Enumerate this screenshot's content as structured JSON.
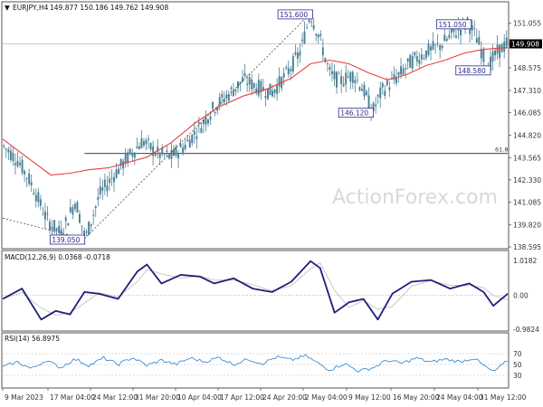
{
  "header": {
    "symbol": "EURJPY,H4",
    "ohlc": "149.877 150.186 149.762 149.908"
  },
  "watermark": "ActionForex.com",
  "colors": {
    "candle": "#4a7f95",
    "ma": "#e8413d",
    "price_tag_bg": "#000000",
    "annotation": "#2b2b8c",
    "macd_main": "#1f1f7a",
    "macd_signal": "#c9c9c9",
    "rsi_line": "#3a8fd6",
    "grid": "#d9d9d9"
  },
  "price_axis": {
    "ticks": [
      "151.055",
      "149.908",
      "148.575",
      "147.310",
      "146.085",
      "144.820",
      "143.565",
      "142.330",
      "141.085",
      "139.820",
      "138.595"
    ],
    "current_price": "149.908"
  },
  "annotations": {
    "high1": "151.600",
    "low1": "139.050",
    "low2": "146.120",
    "high2": "151.050",
    "low3": "148.580",
    "fib": "61.8"
  },
  "macd": {
    "label": "MACD(12,26,9) 0.0368 -0.0718",
    "ticks": [
      "1.0182",
      "0.00",
      "-0.9824"
    ]
  },
  "rsi": {
    "label": "RSI(14) 56.8975",
    "ticks": [
      "70",
      "50",
      "30"
    ]
  },
  "time_axis": {
    "labels": [
      "9 Mar 2023",
      "17 Mar 04:00",
      "24 Mar 12:00",
      "31 Mar 20:00",
      "10 Apr 04:00",
      "17 Apr 12:00",
      "24 Apr 20:00",
      "2 May 04:00",
      "9 May 12:00",
      "16 May 20:00",
      "24 May 04:00",
      "31 May 12:00"
    ]
  },
  "chart_data": {
    "type": "candlestick",
    "price_range": [
      138.595,
      152.2
    ],
    "close_path": [
      [
        0,
        144.2
      ],
      [
        6,
        143.4
      ],
      [
        12,
        142.0
      ],
      [
        18,
        140.1
      ],
      [
        24,
        139.3
      ],
      [
        30,
        141.2
      ],
      [
        34,
        139.05
      ],
      [
        40,
        141.5
      ],
      [
        46,
        142.6
      ],
      [
        52,
        143.6
      ],
      [
        58,
        144.5
      ],
      [
        64,
        143.8
      ],
      [
        70,
        143.6
      ],
      [
        76,
        144.3
      ],
      [
        82,
        145.3
      ],
      [
        88,
        146.4
      ],
      [
        94,
        147.1
      ],
      [
        100,
        147.9
      ],
      [
        106,
        147.5
      ],
      [
        112,
        147.2
      ],
      [
        118,
        148.2
      ],
      [
        124,
        149.5
      ],
      [
        128,
        151.6
      ],
      [
        132,
        150.2
      ],
      [
        136,
        148.3
      ],
      [
        140,
        147.8
      ],
      [
        146,
        148.2
      ],
      [
        150,
        147.4
      ],
      [
        154,
        146.12
      ],
      [
        158,
        147.3
      ],
      [
        164,
        148.0
      ],
      [
        170,
        148.9
      ],
      [
        176,
        149.4
      ],
      [
        182,
        149.8
      ],
      [
        188,
        150.5
      ],
      [
        194,
        151.05
      ],
      [
        198,
        150.1
      ],
      [
        202,
        148.58
      ],
      [
        206,
        149.4
      ],
      [
        210,
        149.908
      ]
    ],
    "ma_path": [
      [
        0,
        144.6
      ],
      [
        10,
        143.6
      ],
      [
        20,
        142.6
      ],
      [
        28,
        142.7
      ],
      [
        36,
        142.9
      ],
      [
        44,
        143.0
      ],
      [
        52,
        143.3
      ],
      [
        60,
        143.6
      ],
      [
        70,
        144.4
      ],
      [
        80,
        145.5
      ],
      [
        90,
        146.4
      ],
      [
        100,
        147.0
      ],
      [
        110,
        147.4
      ],
      [
        120,
        148.0
      ],
      [
        128,
        148.8
      ],
      [
        136,
        149.0
      ],
      [
        144,
        148.8
      ],
      [
        152,
        148.3
      ],
      [
        160,
        147.9
      ],
      [
        168,
        148.2
      ],
      [
        176,
        148.7
      ],
      [
        184,
        149.0
      ],
      [
        192,
        149.4
      ],
      [
        200,
        149.6
      ],
      [
        210,
        149.7
      ]
    ],
    "fib_level": 143.8,
    "macd_path": [
      [
        0,
        -0.1
      ],
      [
        8,
        0.2
      ],
      [
        16,
        -0.7
      ],
      [
        22,
        -0.45
      ],
      [
        28,
        -0.55
      ],
      [
        34,
        0.1
      ],
      [
        40,
        0.05
      ],
      [
        48,
        -0.1
      ],
      [
        56,
        0.7
      ],
      [
        60,
        0.9
      ],
      [
        66,
        0.35
      ],
      [
        74,
        0.6
      ],
      [
        82,
        0.55
      ],
      [
        88,
        0.35
      ],
      [
        96,
        0.5
      ],
      [
        104,
        0.2
      ],
      [
        112,
        0.1
      ],
      [
        120,
        0.4
      ],
      [
        128,
        1.0
      ],
      [
        132,
        0.8
      ],
      [
        138,
        -0.5
      ],
      [
        144,
        -0.2
      ],
      [
        150,
        -0.1
      ],
      [
        156,
        -0.7
      ],
      [
        162,
        0.05
      ],
      [
        170,
        0.4
      ],
      [
        178,
        0.45
      ],
      [
        186,
        0.2
      ],
      [
        194,
        0.35
      ],
      [
        200,
        0.1
      ],
      [
        204,
        -0.3
      ],
      [
        210,
        0.05
      ]
    ],
    "macd_range": [
      -0.9824,
      1.0182
    ],
    "rsi_path": [
      [
        0,
        45
      ],
      [
        6,
        55
      ],
      [
        12,
        42
      ],
      [
        18,
        58
      ],
      [
        24,
        44
      ],
      [
        30,
        60
      ],
      [
        36,
        48
      ],
      [
        42,
        62
      ],
      [
        48,
        50
      ],
      [
        54,
        63
      ],
      [
        60,
        48
      ],
      [
        66,
        58
      ],
      [
        72,
        50
      ],
      [
        78,
        62
      ],
      [
        84,
        55
      ],
      [
        90,
        63
      ],
      [
        96,
        50
      ],
      [
        102,
        60
      ],
      [
        108,
        52
      ],
      [
        114,
        64
      ],
      [
        120,
        58
      ],
      [
        126,
        66
      ],
      [
        130,
        55
      ],
      [
        136,
        40
      ],
      [
        142,
        52
      ],
      [
        148,
        38
      ],
      [
        154,
        44
      ],
      [
        160,
        58
      ],
      [
        166,
        52
      ],
      [
        172,
        62
      ],
      [
        178,
        54
      ],
      [
        184,
        60
      ],
      [
        190,
        55
      ],
      [
        196,
        62
      ],
      [
        200,
        48
      ],
      [
        204,
        36
      ],
      [
        210,
        56.9
      ]
    ],
    "rsi_range": [
      10,
      90
    ]
  }
}
